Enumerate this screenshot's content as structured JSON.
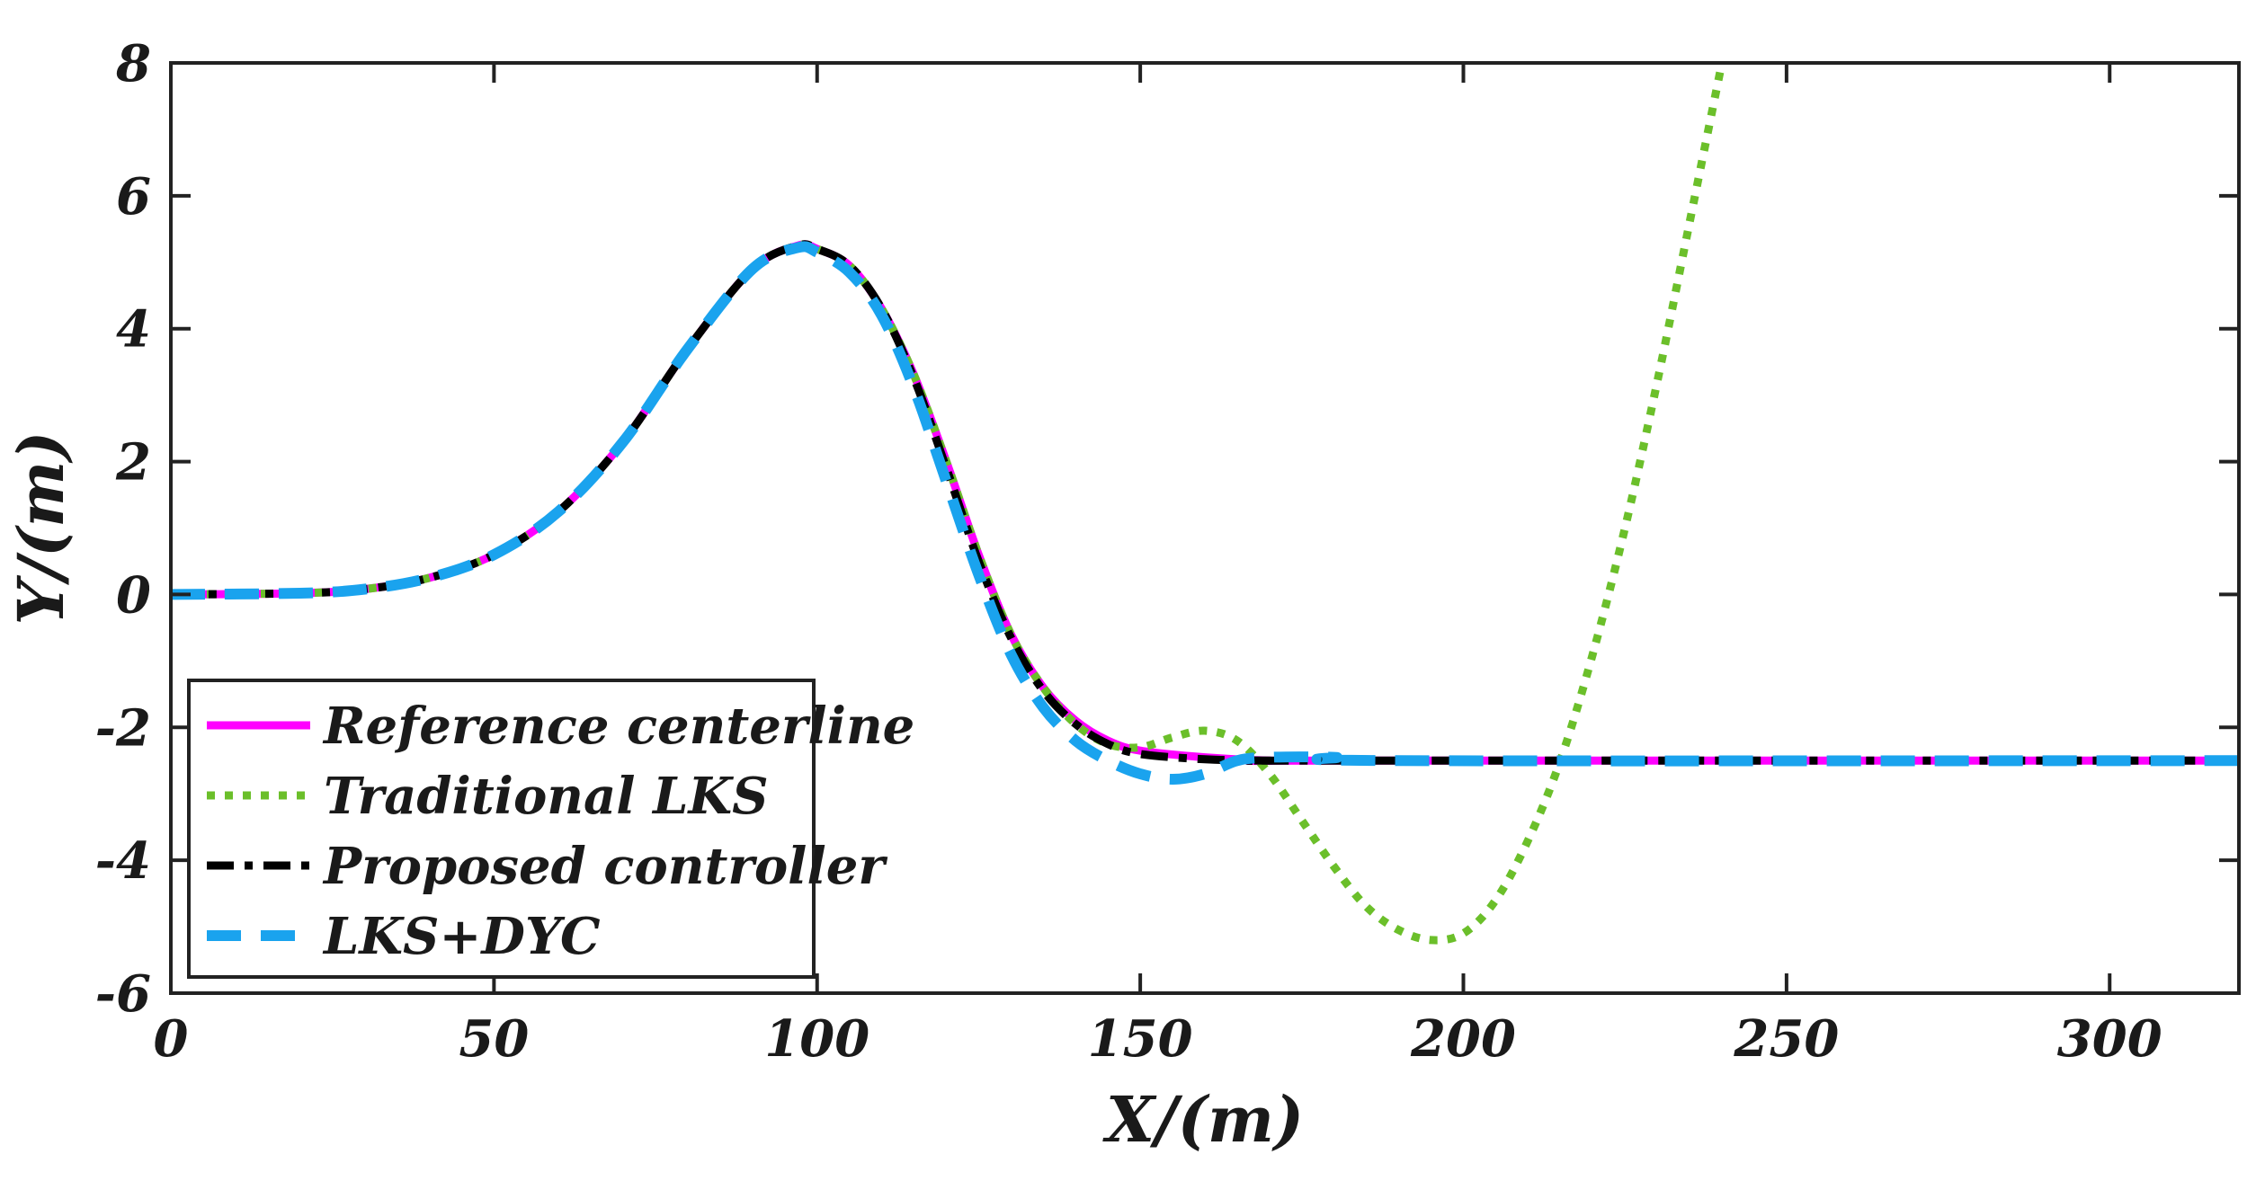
{
  "chart_data": {
    "type": "line",
    "title": "",
    "xlabel": "X/(m)",
    "ylabel": "Y/(m)",
    "xlim": [
      0,
      320
    ],
    "ylim": [
      -6,
      8
    ],
    "xticks": [
      0,
      50,
      100,
      150,
      200,
      250,
      300
    ],
    "yticks": [
      -6,
      -4,
      -2,
      0,
      2,
      4,
      6,
      8
    ],
    "grid": false,
    "legend_position": "bottom-left",
    "series": [
      {
        "name": "Reference centerline",
        "color": "#ff00ff",
        "style": "solid",
        "points": [
          [
            0,
            0
          ],
          [
            20,
            0.02
          ],
          [
            30,
            0.08
          ],
          [
            40,
            0.25
          ],
          [
            50,
            0.6
          ],
          [
            60,
            1.25
          ],
          [
            70,
            2.3
          ],
          [
            80,
            3.7
          ],
          [
            90,
            4.9
          ],
          [
            97,
            5.25
          ],
          [
            100,
            5.2
          ],
          [
            105,
            4.95
          ],
          [
            110,
            4.3
          ],
          [
            115,
            3.3
          ],
          [
            120,
            2.0
          ],
          [
            125,
            0.6
          ],
          [
            130,
            -0.6
          ],
          [
            135,
            -1.4
          ],
          [
            140,
            -1.9
          ],
          [
            145,
            -2.2
          ],
          [
            150,
            -2.35
          ],
          [
            160,
            -2.45
          ],
          [
            170,
            -2.5
          ],
          [
            180,
            -2.5
          ],
          [
            320,
            -2.5
          ]
        ]
      },
      {
        "name": "Traditional LKS",
        "color": "#6bbf2a",
        "style": "dotted",
        "points": [
          [
            0,
            0
          ],
          [
            20,
            0.02
          ],
          [
            30,
            0.08
          ],
          [
            40,
            0.25
          ],
          [
            50,
            0.6
          ],
          [
            60,
            1.25
          ],
          [
            70,
            2.3
          ],
          [
            80,
            3.7
          ],
          [
            90,
            4.9
          ],
          [
            97,
            5.25
          ],
          [
            100,
            5.2
          ],
          [
            105,
            4.95
          ],
          [
            110,
            4.3
          ],
          [
            115,
            3.3
          ],
          [
            120,
            2.0
          ],
          [
            125,
            0.6
          ],
          [
            130,
            -0.6
          ],
          [
            135,
            -1.4
          ],
          [
            140,
            -1.95
          ],
          [
            145,
            -2.25
          ],
          [
            150,
            -2.3
          ],
          [
            155,
            -2.15
          ],
          [
            160,
            -2.05
          ],
          [
            165,
            -2.2
          ],
          [
            170,
            -2.7
          ],
          [
            175,
            -3.4
          ],
          [
            180,
            -4.1
          ],
          [
            185,
            -4.7
          ],
          [
            190,
            -5.05
          ],
          [
            195,
            -5.2
          ],
          [
            200,
            -5.1
          ],
          [
            205,
            -4.6
          ],
          [
            210,
            -3.7
          ],
          [
            215,
            -2.5
          ],
          [
            220,
            -0.9
          ],
          [
            225,
            1.0
          ],
          [
            230,
            3.2
          ],
          [
            235,
            5.6
          ],
          [
            240,
            8.0
          ]
        ]
      },
      {
        "name": "Proposed controller",
        "color": "#000000",
        "style": "dashdot",
        "points": [
          [
            0,
            0
          ],
          [
            20,
            0.02
          ],
          [
            30,
            0.08
          ],
          [
            40,
            0.25
          ],
          [
            50,
            0.6
          ],
          [
            60,
            1.25
          ],
          [
            70,
            2.3
          ],
          [
            80,
            3.7
          ],
          [
            90,
            4.9
          ],
          [
            97,
            5.25
          ],
          [
            100,
            5.2
          ],
          [
            105,
            4.95
          ],
          [
            110,
            4.3
          ],
          [
            115,
            3.25
          ],
          [
            120,
            1.9
          ],
          [
            125,
            0.5
          ],
          [
            130,
            -0.65
          ],
          [
            135,
            -1.45
          ],
          [
            140,
            -1.95
          ],
          [
            145,
            -2.25
          ],
          [
            150,
            -2.4
          ],
          [
            160,
            -2.48
          ],
          [
            170,
            -2.5
          ],
          [
            180,
            -2.5
          ],
          [
            320,
            -2.5
          ]
        ]
      },
      {
        "name": "LKS+DYC",
        "color": "#1aa3ee",
        "style": "dashed",
        "points": [
          [
            0,
            0
          ],
          [
            20,
            0.02
          ],
          [
            30,
            0.08
          ],
          [
            40,
            0.25
          ],
          [
            50,
            0.6
          ],
          [
            60,
            1.25
          ],
          [
            70,
            2.3
          ],
          [
            80,
            3.7
          ],
          [
            90,
            4.9
          ],
          [
            97,
            5.22
          ],
          [
            100,
            5.15
          ],
          [
            105,
            4.85
          ],
          [
            110,
            4.2
          ],
          [
            115,
            3.1
          ],
          [
            120,
            1.7
          ],
          [
            125,
            0.3
          ],
          [
            130,
            -0.9
          ],
          [
            135,
            -1.7
          ],
          [
            140,
            -2.2
          ],
          [
            145,
            -2.5
          ],
          [
            150,
            -2.7
          ],
          [
            155,
            -2.78
          ],
          [
            160,
            -2.7
          ],
          [
            165,
            -2.5
          ],
          [
            170,
            -2.45
          ],
          [
            180,
            -2.45
          ],
          [
            190,
            -2.5
          ],
          [
            320,
            -2.5
          ]
        ]
      }
    ]
  }
}
